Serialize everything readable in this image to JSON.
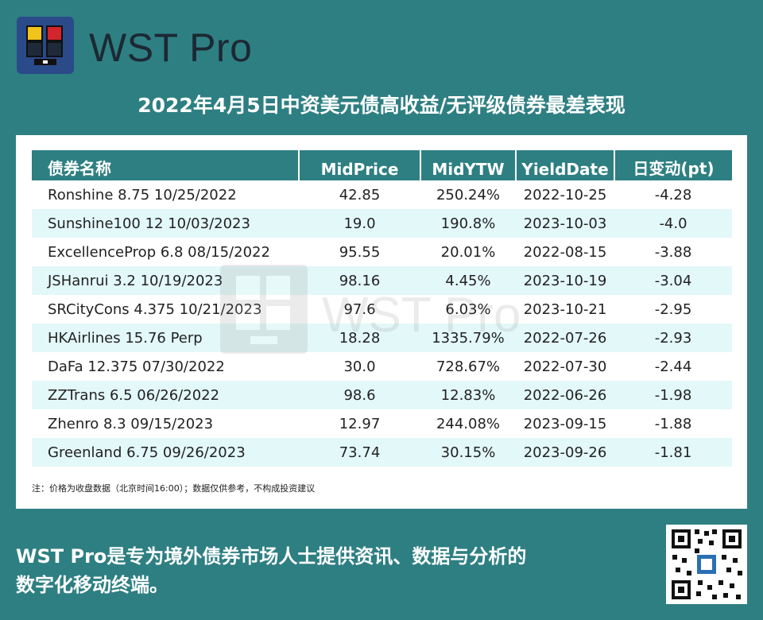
{
  "brand": {
    "name": "WST Pro",
    "logo_colors": [
      "#f2c41a",
      "#d4242c",
      "#1e2a3a",
      "#1e2a3a"
    ]
  },
  "title": "2022年4月5日中资美元债高收益/无评级债券最差表现",
  "table": {
    "columns": [
      "债券名称",
      "MidPrice",
      "MidYTW",
      "YieldDate",
      "日变动(pt)"
    ],
    "rows": [
      [
        "Ronshine 8.75 10/25/2022",
        "42.85",
        "250.24%",
        "2022-10-25",
        "-4.28"
      ],
      [
        "Sunshine100 12 10/03/2023",
        "19.0",
        "190.8%",
        "2023-10-03",
        "-4.0"
      ],
      [
        "ExcellenceProp 6.8 08/15/2022",
        "95.55",
        "20.01%",
        "2022-08-15",
        "-3.88"
      ],
      [
        "JSHanrui 3.2 10/19/2023",
        "98.16",
        "4.45%",
        "2023-10-19",
        "-3.04"
      ],
      [
        "SRCityCons 4.375 10/21/2023",
        "97.6",
        "6.03%",
        "2023-10-21",
        "-2.95"
      ],
      [
        "HKAirlines 15.76 Perp",
        "18.28",
        "1335.79%",
        "2022-07-26",
        "-2.93"
      ],
      [
        "DaFa 12.375 07/30/2022",
        "30.0",
        "728.67%",
        "2022-07-30",
        "-2.44"
      ],
      [
        "ZZTrans 6.5 06/26/2022",
        "98.6",
        "12.83%",
        "2022-06-26",
        "-1.98"
      ],
      [
        "Zhenro 8.3 09/15/2023",
        "12.97",
        "244.08%",
        "2023-09-15",
        "-1.88"
      ],
      [
        "Greenland 6.75 09/26/2023",
        "73.74",
        "30.15%",
        "2023-09-26",
        "-1.81"
      ]
    ]
  },
  "watermark": "WST Pro",
  "note": "注：价格为收盘数据（北京时间16:00）；数据仅供参考，不构成投资建议",
  "footer": {
    "line1": "WST Pro是专为境外债券市场人士提供资讯、数据与分析的",
    "line2": "数字化移动终端。"
  },
  "colors": {
    "background": "#2e7f82",
    "header": "#2e7f82",
    "row_alt": "#e3f8f9",
    "panel": "#ffffff"
  }
}
